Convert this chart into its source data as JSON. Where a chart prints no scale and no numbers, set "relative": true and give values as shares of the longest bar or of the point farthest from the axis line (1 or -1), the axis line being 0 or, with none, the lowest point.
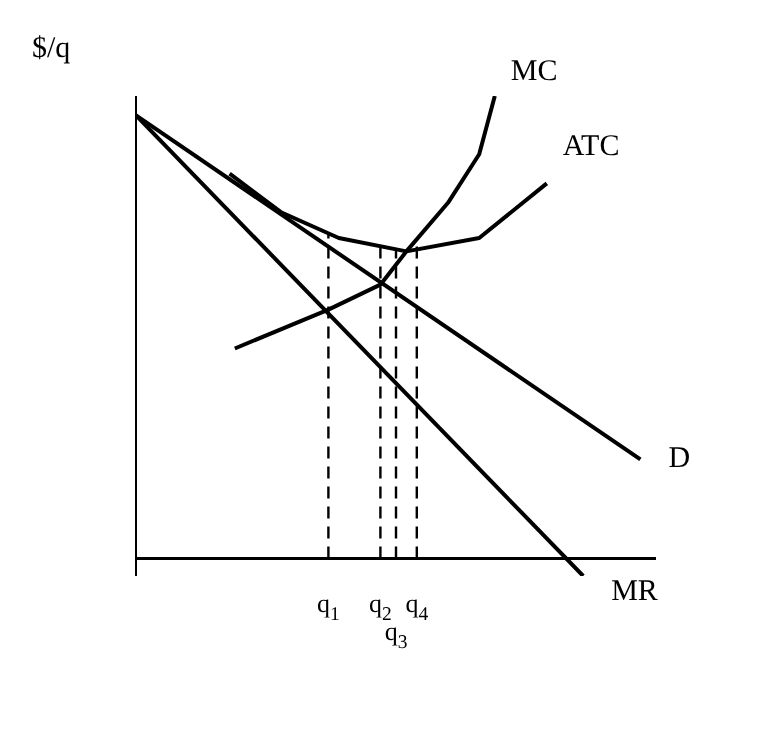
{
  "chart_data": {
    "type": "line",
    "relative": true,
    "ylabel": "$/q",
    "categories": [
      null,
      null,
      null,
      null,
      null,
      null,
      null,
      null,
      null,
      null,
      null,
      null,
      null,
      null,
      null,
      null,
      null,
      null,
      null,
      null,
      null,
      null,
      null,
      null,
      null,
      null,
      null,
      null,
      null,
      null,
      null,
      null,
      null,
      null,
      null,
      null,
      null,
      "q$_{1}$",
      null,
      null,
      null,
      null,
      null,
      null,
      null,
      null,
      null,
      "q$_{2}$",
      null,
      null,
      "q$_{3}$",
      null,
      null,
      null,
      "q$_{4}$",
      null,
      null,
      null,
      null,
      null,
      null,
      null,
      null,
      null,
      null,
      null,
      null,
      null,
      null,
      null,
      null,
      null,
      null,
      null,
      null,
      null,
      null,
      null,
      null,
      null,
      null,
      null,
      null,
      null,
      null,
      null,
      null,
      null,
      null,
      null,
      null,
      null,
      null,
      null,
      null,
      null,
      null,
      null,
      null,
      null,
      null
    ],
    "ref_lines": [
      {
        "axis": "x",
        "value": "q$_{1}$",
        "line_style": "dashed",
        "color": "#000000"
      },
      {
        "axis": "x",
        "value": "q$_{2}$",
        "line_style": "dashed",
        "color": "#000000"
      },
      {
        "axis": "x",
        "value": "q$_{3}$",
        "line_style": "dashed",
        "color": "#000000"
      },
      {
        "axis": "x",
        "value": "q$_{4}$",
        "line_style": "dashed",
        "color": "#000000"
      }
    ],
    "series": [
      {
        "name": "MC",
        "color": "#000000",
        "values": [
          null,
          null,
          null,
          null,
          null,
          null,
          null,
          null,
          null,
          null,
          null,
          null,
          null,
          null,
          null,
          null,
          null,
          null,
          null,
          0.454,
          null,
          null,
          null,
          null,
          null,
          null,
          null,
          null,
          null,
          null,
          null,
          null,
          null,
          null,
          null,
          null,
          null,
          0.538,
          null,
          null,
          null,
          null,
          null,
          null,
          null,
          null,
          null,
          0.592,
          null,
          null,
          null,
          null,
          0.664,
          null,
          null,
          null,
          null,
          null,
          null,
          null,
          0.769,
          null,
          null,
          null,
          null,
          null,
          0.874,
          null,
          null,
          1,
          null,
          null,
          null,
          null,
          null,
          null,
          null,
          null,
          null,
          null,
          null,
          null,
          null,
          null,
          null,
          null,
          null,
          null,
          null,
          null,
          null,
          null,
          null,
          null,
          null,
          null,
          null,
          null,
          null,
          null,
          null
        ]
      },
      {
        "name": "ATC",
        "color": "#000000",
        "values": [
          null,
          null,
          null,
          null,
          null,
          null,
          null,
          null,
          null,
          null,
          null,
          null,
          null,
          null,
          null,
          null,
          null,
          null,
          0.832,
          null,
          null,
          null,
          null,
          null,
          null,
          null,
          null,
          null,
          0.748,
          null,
          null,
          null,
          null,
          null,
          null,
          null,
          null,
          null,
          null,
          0.693,
          null,
          null,
          null,
          null,
          null,
          null,
          null,
          null,
          null,
          null,
          null,
          null,
          0.664,
          null,
          null,
          null,
          null,
          null,
          null,
          null,
          null,
          null,
          null,
          null,
          null,
          null,
          0.693,
          null,
          null,
          null,
          null,
          null,
          null,
          null,
          null,
          null,
          null,
          null,
          null,
          0.811,
          null,
          null,
          null,
          null,
          null,
          null,
          null,
          null,
          null,
          null,
          null,
          null,
          null,
          null,
          null,
          null,
          null,
          null,
          null,
          null,
          null
        ]
      },
      {
        "name": "D",
        "color": "#000000",
        "values": [
          0.958,
          null,
          null,
          null,
          null,
          null,
          null,
          null,
          null,
          null,
          null,
          null,
          null,
          null,
          null,
          null,
          null,
          null,
          null,
          null,
          null,
          null,
          null,
          null,
          null,
          null,
          null,
          null,
          null,
          null,
          null,
          null,
          null,
          null,
          null,
          null,
          null,
          null,
          null,
          null,
          null,
          null,
          null,
          null,
          null,
          null,
          null,
          null,
          null,
          null,
          null,
          null,
          null,
          null,
          null,
          null,
          null,
          null,
          null,
          null,
          null,
          null,
          null,
          null,
          null,
          null,
          null,
          null,
          null,
          null,
          null,
          null,
          null,
          null,
          null,
          null,
          null,
          null,
          null,
          null,
          null,
          null,
          null,
          null,
          null,
          null,
          null,
          null,
          null,
          null,
          null,
          null,
          null,
          null,
          null,
          null,
          null,
          0.214,
          null,
          null,
          null
        ]
      },
      {
        "name": "MR",
        "color": "#000000",
        "values": [
          0.958,
          null,
          null,
          null,
          null,
          null,
          null,
          null,
          null,
          null,
          null,
          null,
          null,
          null,
          null,
          null,
          null,
          null,
          null,
          null,
          null,
          null,
          null,
          null,
          null,
          null,
          null,
          null,
          null,
          null,
          null,
          null,
          null,
          null,
          null,
          null,
          null,
          null,
          null,
          null,
          null,
          null,
          null,
          null,
          null,
          null,
          null,
          null,
          null,
          null,
          null,
          null,
          null,
          null,
          null,
          null,
          null,
          null,
          null,
          null,
          null,
          null,
          null,
          null,
          null,
          null,
          null,
          null,
          null,
          null,
          null,
          null,
          null,
          null,
          null,
          null,
          null,
          null,
          null,
          null,
          null,
          null,
          null,
          null,
          null,
          null,
          -0.038,
          null,
          null,
          null,
          null,
          null,
          null,
          null,
          null,
          null,
          null,
          null,
          null,
          null,
          null
        ]
      }
    ]
  }
}
